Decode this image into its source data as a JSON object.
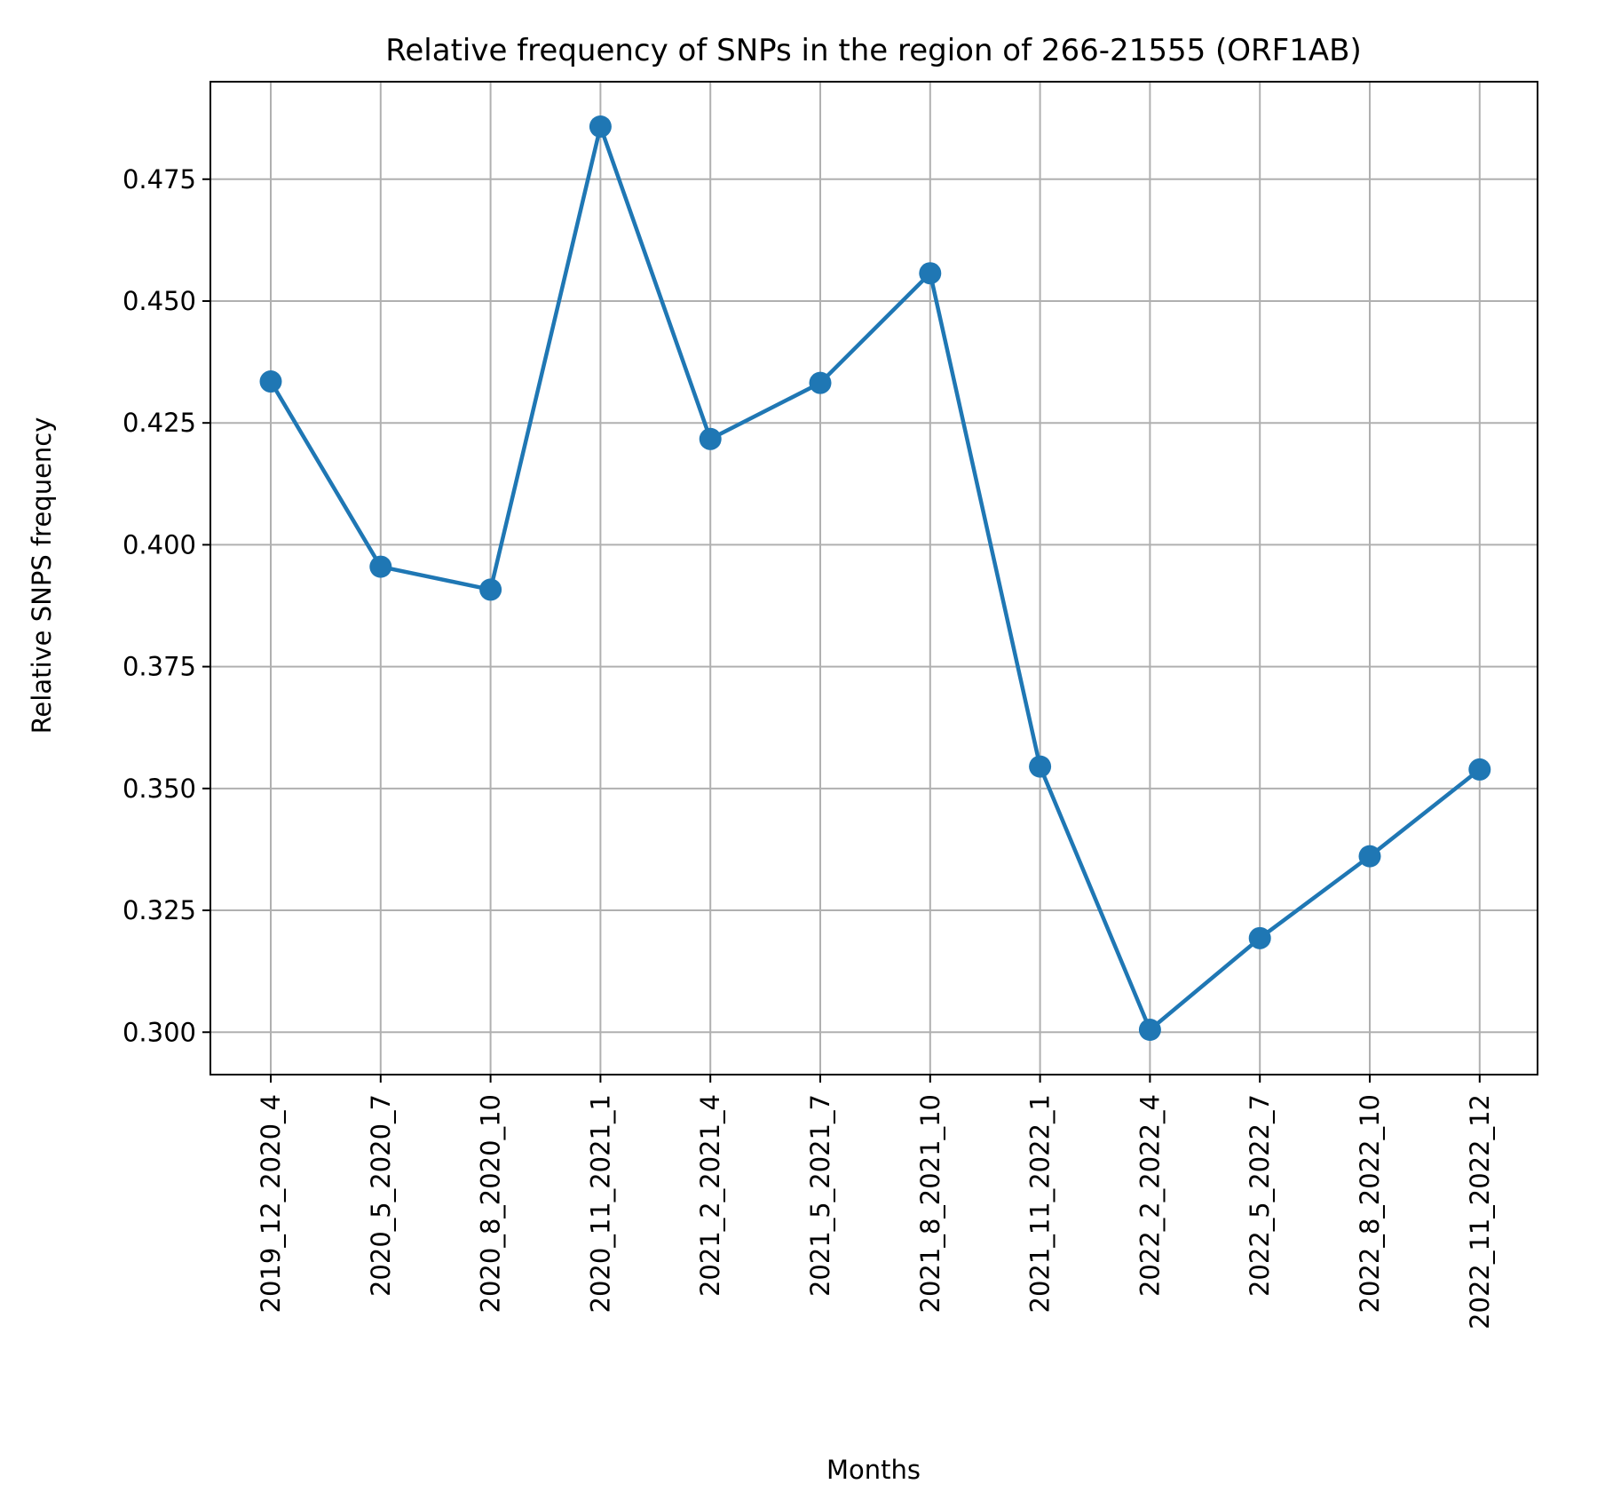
{
  "chart_data": {
    "type": "line",
    "title": "Relative frequency of SNPs in the region of 266-21555 (ORF1AB)",
    "xlabel": "Months",
    "ylabel": "Relative SNPS frequency",
    "categories": [
      "2019_12_2020_4",
      "2020_5_2020_7",
      "2020_8_2020_10",
      "2020_11_2021_1",
      "2021_2_2021_4",
      "2021_5_2021_7",
      "2021_8_2021_10",
      "2021_11_2022_1",
      "2022_2_2022_4",
      "2022_5_2022_7",
      "2022_8_2022_10",
      "2022_11_2022_12"
    ],
    "series": [
      {
        "values": [
          0.4335,
          0.3955,
          0.3908,
          0.4858,
          0.4217,
          0.4332,
          0.4557,
          0.3545,
          0.3005,
          0.3193,
          0.3361,
          0.3539
        ],
        "color": "#1f77b4",
        "marker": "circle"
      }
    ],
    "ylim": [
      0.2913,
      0.495
    ],
    "yticks": [
      "0.300",
      "0.325",
      "0.350",
      "0.375",
      "0.400",
      "0.425",
      "0.450",
      "0.475"
    ],
    "grid": true,
    "x_tick_rotation": 90
  }
}
